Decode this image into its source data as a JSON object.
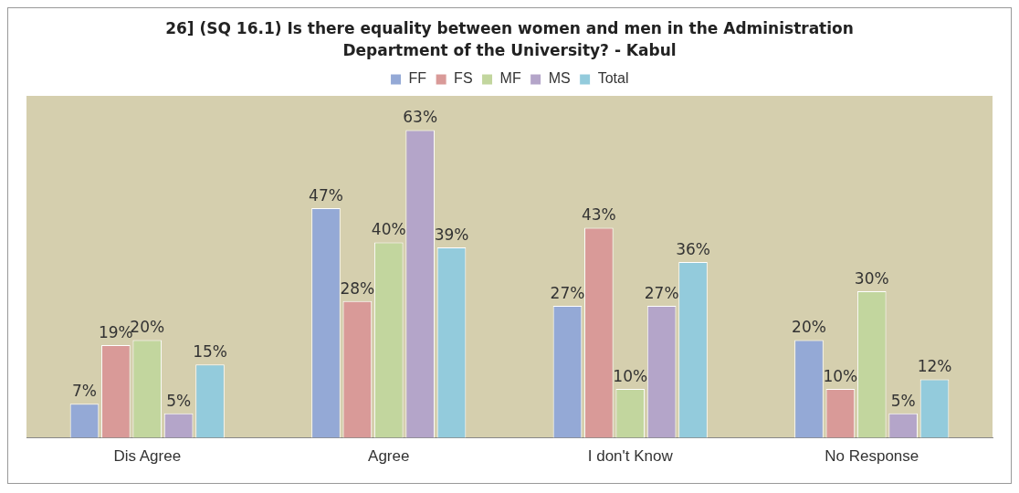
{
  "chart_data": {
    "type": "bar",
    "title": "26]  (SQ 16.1) Is there equality between women and men in the Administration Department of the University? - Kabul",
    "categories": [
      "Dis Agree",
      "Agree",
      "I don't Know",
      "No Response"
    ],
    "series": [
      {
        "name": "FF",
        "color": "#94a9d6",
        "values": [
          7,
          47,
          27,
          20
        ],
        "value_labels": [
          "7%",
          "47%",
          "27%",
          "20%"
        ]
      },
      {
        "name": "FS",
        "color": "#d99a98",
        "values": [
          19,
          28,
          43,
          10
        ],
        "value_labels": [
          "19%",
          "28%",
          "43%",
          "10%"
        ]
      },
      {
        "name": "MF",
        "color": "#c2d69e",
        "values": [
          20,
          40,
          10,
          30
        ],
        "value_labels": [
          "20%",
          "40%",
          "10%",
          "30%"
        ]
      },
      {
        "name": "MS",
        "color": "#b4a5c9",
        "values": [
          5,
          63,
          27,
          5
        ],
        "value_labels": [
          "5%",
          "63%",
          "27%",
          "5%"
        ]
      },
      {
        "name": "Total",
        "color": "#93cbdc",
        "values": [
          15,
          39,
          36,
          12
        ],
        "value_labels": [
          "15%",
          "39%",
          "36%",
          "12%"
        ]
      }
    ],
    "legend": "top",
    "grid": false
  }
}
